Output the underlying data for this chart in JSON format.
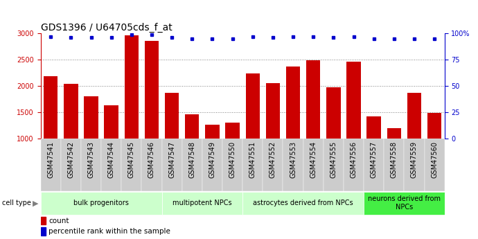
{
  "title": "GDS1396 / U64705cds_f_at",
  "samples": [
    "GSM47541",
    "GSM47542",
    "GSM47543",
    "GSM47544",
    "GSM47545",
    "GSM47546",
    "GSM47547",
    "GSM47548",
    "GSM47549",
    "GSM47550",
    "GSM47551",
    "GSM47552",
    "GSM47553",
    "GSM47554",
    "GSM47555",
    "GSM47556",
    "GSM47557",
    "GSM47558",
    "GSM47559",
    "GSM47560"
  ],
  "counts": [
    2190,
    2040,
    1800,
    1640,
    2960,
    2860,
    1870,
    1460,
    1260,
    1300,
    2240,
    2060,
    2370,
    2490,
    1970,
    2470,
    1420,
    1200,
    1870,
    1490
  ],
  "percentile_ranks": [
    97,
    96,
    96,
    96,
    99,
    99,
    96,
    95,
    95,
    95,
    97,
    96,
    97,
    97,
    96,
    97,
    95,
    95,
    95,
    95
  ],
  "cell_type_groups": [
    {
      "label": "bulk progenitors",
      "start": 0,
      "end": 5,
      "color": "#ccffcc"
    },
    {
      "label": "multipotent NPCs",
      "start": 6,
      "end": 9,
      "color": "#ccffcc"
    },
    {
      "label": "astrocytes derived from NPCs",
      "start": 10,
      "end": 15,
      "color": "#ccffcc"
    },
    {
      "label": "neurons derived from\nNPCs",
      "start": 16,
      "end": 19,
      "color": "#44ee44"
    }
  ],
  "ylim_left": [
    1000,
    3000
  ],
  "ylim_right": [
    0,
    100
  ],
  "yticks_left": [
    1000,
    1500,
    2000,
    2500,
    3000
  ],
  "yticks_right": [
    0,
    25,
    50,
    75,
    100
  ],
  "bar_color": "#cc0000",
  "dot_color": "#0000cc",
  "bg_color": "#ffffff",
  "xtick_bg": "#cccccc",
  "title_fontsize": 10,
  "tick_fontsize": 7,
  "group_fontsize": 7
}
